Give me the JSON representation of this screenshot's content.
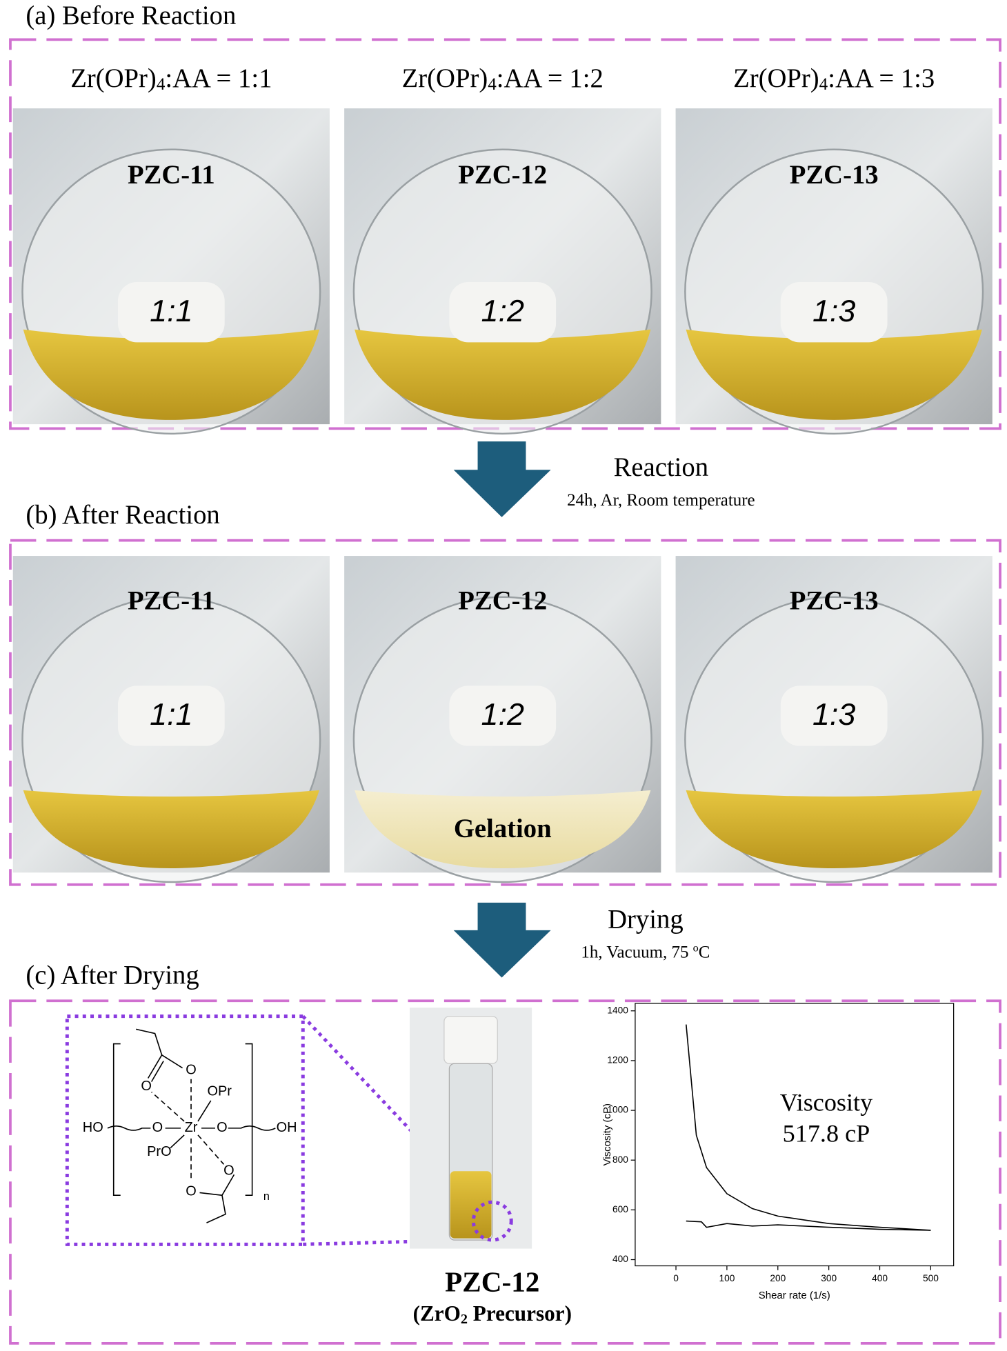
{
  "sections": [
    {
      "title": "(a) Before Reaction",
      "panels": [
        {
          "header": {
            "prefix": "Zr(OPr)",
            "subscript": "4",
            "suffix": ":AA = 1:1"
          },
          "label": "PZC-11",
          "tag": "1:1"
        },
        {
          "header": {
            "prefix": "Zr(OPr)",
            "subscript": "4",
            "suffix": ":AA = 1:2"
          },
          "label": "PZC-12",
          "tag": "1:2"
        },
        {
          "header": {
            "prefix": "Zr(OPr)",
            "subscript": "4",
            "suffix": ":AA = 1:3"
          },
          "label": "PZC-13",
          "tag": "1:3"
        }
      ]
    },
    {
      "title": "(b) After Reaction",
      "panels": [
        {
          "label": "PZC-11",
          "tag": "1:1"
        },
        {
          "label": "PZC-12",
          "tag": "1:2",
          "note": "Gelation"
        },
        {
          "label": "PZC-13",
          "tag": "1:3"
        }
      ]
    },
    {
      "title": "(c) After Drying",
      "vial": {
        "label": "PZC-12",
        "caption": {
          "prefix": "(ZrO",
          "subscript": "2",
          "suffix": " Precursor)"
        }
      }
    }
  ],
  "steps": [
    {
      "name": "Reaction",
      "conditions": "24h, Ar, Room temperature"
    },
    {
      "name": "Drying",
      "conditions": {
        "prefix": "1h, Vacuum, 75 ",
        "superscript": "o",
        "suffix": "C"
      }
    }
  ],
  "structure": {
    "atoms": [
      "HO",
      "O",
      "Zr",
      "O",
      "OH",
      "OPr",
      "PrO",
      "O",
      "O",
      "O",
      "O"
    ],
    "repeat": "n"
  },
  "chart_data": {
    "type": "line",
    "x_label": "Shear rate (1/s)",
    "y_label": "Viscosity (cP)",
    "annotation": [
      "Viscosity",
      "517.8 cP"
    ],
    "annotation_color": "#e02020",
    "xlim": [
      -80,
      545
    ],
    "ylim": [
      375,
      1430
    ],
    "xticks": [
      0,
      100,
      200,
      300,
      400,
      500
    ],
    "yticks": [
      400,
      600,
      800,
      1000,
      1200,
      1400
    ],
    "series": [
      {
        "color": "#000000",
        "x": [
          20,
          40,
          60,
          100,
          150,
          200,
          250,
          300,
          400,
          500
        ],
        "values": [
          1345,
          900,
          770,
          665,
          605,
          575,
          560,
          545,
          530,
          518
        ]
      },
      {
        "color": "#000000",
        "x": [
          20,
          50,
          60,
          100,
          150,
          200,
          300,
          400,
          500
        ],
        "values": [
          555,
          552,
          530,
          545,
          535,
          540,
          530,
          522,
          518
        ]
      }
    ]
  }
}
